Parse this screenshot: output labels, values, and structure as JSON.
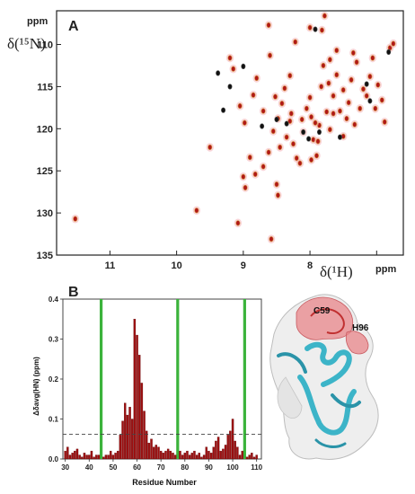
{
  "colors": {
    "peak_red": "#b01818",
    "peak_black": "#111111",
    "peak_halo": "#f2a0a8",
    "bar_fill": "#9e0f10",
    "marker_green": "#3bb33b",
    "threshold_line": "#444444",
    "protein_surface": "#eeeeee",
    "protein_helix": "#3cb4c8",
    "protein_hotspot": "#e8868a"
  },
  "panel_a": {
    "label": "A",
    "y_unit": "ppm",
    "y_title": "δ(¹⁵N)",
    "x_title": "δ(¹H)",
    "x_unit": "ppm"
  },
  "panel_b": {
    "label": "B",
    "y_title": "Δδavg(HN) (ppm)",
    "x_title": "Residue Number"
  },
  "structure": {
    "label_c59": "C59",
    "label_h96": "H96"
  },
  "chart_data": [
    {
      "type": "scatter",
      "xlabel": "δ(¹H)",
      "ylabel": "δ(¹⁵N)",
      "x_unit": "ppm",
      "y_unit": "ppm",
      "xlim": [
        11.8,
        6.6
      ],
      "ylim": [
        135,
        106
      ],
      "x_ticks": [
        11,
        10,
        9,
        8,
        7
      ],
      "y_ticks": [
        110,
        115,
        120,
        125,
        130,
        135
      ],
      "grid": false,
      "series": [
        {
          "color": "red",
          "points": [
            [
              11.52,
              130.7
            ],
            [
              9.7,
              129.7
            ],
            [
              9.08,
              131.2
            ],
            [
              9.0,
              125.7
            ],
            [
              8.97,
              127.0
            ],
            [
              8.9,
              123.4
            ],
            [
              8.82,
              125.4
            ],
            [
              8.7,
              124.5
            ],
            [
              8.62,
              122.8
            ],
            [
              8.5,
              126.6
            ],
            [
              8.48,
              127.9
            ],
            [
              8.55,
              120.3
            ],
            [
              8.48,
              118.8
            ],
            [
              8.42,
              117.0
            ],
            [
              8.38,
              115.2
            ],
            [
              8.3,
              119.1
            ],
            [
              8.25,
              121.8
            ],
            [
              8.2,
              123.5
            ],
            [
              8.15,
              124.1
            ],
            [
              8.1,
              120.4
            ],
            [
              8.05,
              117.6
            ],
            [
              8.0,
              116.3
            ],
            [
              7.98,
              118.6
            ],
            [
              7.95,
              121.3
            ],
            [
              7.9,
              123.2
            ],
            [
              7.86,
              119.6
            ],
            [
              7.83,
              115.0
            ],
            [
              7.8,
              112.5
            ],
            [
              7.75,
              118.0
            ],
            [
              7.72,
              114.6
            ],
            [
              7.7,
              120.1
            ],
            [
              7.65,
              116.1
            ],
            [
              7.6,
              113.6
            ],
            [
              7.55,
              117.9
            ],
            [
              7.5,
              115.4
            ],
            [
              7.45,
              118.8
            ],
            [
              7.42,
              116.9
            ],
            [
              7.38,
              114.2
            ],
            [
              7.33,
              119.5
            ],
            [
              7.3,
              112.1
            ],
            [
              7.25,
              117.6
            ],
            [
              7.2,
              115.3
            ],
            [
              7.15,
              116.1
            ],
            [
              7.1,
              113.8
            ],
            [
              7.06,
              111.6
            ],
            [
              7.02,
              117.6
            ],
            [
              6.98,
              114.8
            ],
            [
              6.92,
              116.6
            ],
            [
              6.88,
              119.2
            ],
            [
              6.8,
              110.4
            ],
            [
              6.75,
              109.9
            ],
            [
              8.62,
              107.7
            ],
            [
              8.22,
              109.7
            ],
            [
              8.0,
              108.0
            ],
            [
              7.82,
              108.3
            ],
            [
              7.78,
              106.6
            ],
            [
              7.35,
              111.0
            ],
            [
              9.5,
              122.2
            ],
            [
              9.2,
              111.6
            ],
            [
              9.05,
              117.3
            ],
            [
              8.85,
              116.0
            ],
            [
              8.8,
              114.0
            ],
            [
              8.7,
              117.9
            ],
            [
              8.6,
              111.3
            ],
            [
              8.98,
              119.3
            ],
            [
              8.52,
              116.2
            ],
            [
              8.35,
              121.0
            ],
            [
              8.28,
              118.2
            ],
            [
              7.92,
              119.3
            ],
            [
              7.6,
              110.7
            ],
            [
              7.88,
              121.5
            ],
            [
              8.12,
              118.9
            ],
            [
              8.45,
              122.2
            ],
            [
              8.3,
              113.7
            ],
            [
              7.7,
              111.8
            ],
            [
              7.5,
              120.9
            ],
            [
              8.58,
              133.1
            ],
            [
              9.15,
              112.9
            ],
            [
              7.98,
              123.7
            ],
            [
              7.65,
              118.2
            ]
          ]
        },
        {
          "color": "black",
          "points": [
            [
              9.38,
              113.4
            ],
            [
              9.3,
              117.8
            ],
            [
              9.0,
              112.6
            ],
            [
              8.72,
              119.7
            ],
            [
              8.1,
              120.4
            ],
            [
              7.86,
              120.4
            ],
            [
              7.92,
              108.2
            ],
            [
              7.15,
              114.7
            ],
            [
              7.1,
              116.7
            ],
            [
              6.82,
              110.9
            ],
            [
              9.2,
              115.0
            ],
            [
              8.5,
              118.9
            ],
            [
              8.35,
              119.4
            ],
            [
              8.02,
              121.2
            ],
            [
              7.55,
              121.0
            ]
          ]
        }
      ]
    },
    {
      "type": "bar",
      "xlabel": "Residue Number",
      "ylabel": "Δδavg(HN) (ppm)",
      "xlim": [
        29,
        112
      ],
      "ylim": [
        0,
        0.4
      ],
      "x_ticks": [
        30,
        40,
        50,
        60,
        70,
        80,
        90,
        100,
        110
      ],
      "y_ticks": [
        0.0,
        0.1,
        0.2,
        0.3,
        0.4
      ],
      "threshold": 0.062,
      "marked_residues": [
        45,
        77,
        105
      ],
      "x": [
        30,
        31,
        32,
        33,
        34,
        35,
        36,
        37,
        38,
        39,
        40,
        41,
        42,
        43,
        44,
        45,
        46,
        47,
        48,
        49,
        50,
        51,
        52,
        53,
        54,
        55,
        56,
        57,
        58,
        59,
        60,
        61,
        62,
        63,
        64,
        65,
        66,
        67,
        68,
        69,
        70,
        71,
        72,
        73,
        74,
        75,
        76,
        77,
        78,
        79,
        80,
        81,
        82,
        83,
        84,
        85,
        86,
        87,
        88,
        89,
        90,
        91,
        92,
        93,
        94,
        95,
        96,
        97,
        98,
        99,
        100,
        101,
        102,
        103,
        104,
        105,
        106,
        107,
        108,
        109,
        110
      ],
      "values": [
        0.02,
        0.03,
        0.01,
        0.015,
        0.02,
        0.025,
        0.01,
        0.005,
        0.015,
        0.01,
        0.01,
        0.02,
        0.005,
        0.01,
        0.01,
        0.0,
        0.005,
        0.01,
        0.01,
        0.02,
        0.01,
        0.015,
        0.02,
        0.06,
        0.095,
        0.14,
        0.11,
        0.13,
        0.1,
        0.35,
        0.31,
        0.26,
        0.19,
        0.12,
        0.07,
        0.04,
        0.05,
        0.03,
        0.035,
        0.03,
        0.02,
        0.015,
        0.02,
        0.025,
        0.02,
        0.015,
        0.01,
        0.0,
        0.02,
        0.01,
        0.015,
        0.02,
        0.01,
        0.015,
        0.02,
        0.01,
        0.015,
        0.005,
        0.01,
        0.03,
        0.02,
        0.015,
        0.03,
        0.045,
        0.055,
        0.02,
        0.025,
        0.035,
        0.06,
        0.07,
        0.1,
        0.045,
        0.03,
        0.01,
        0.02,
        0.0,
        0.005,
        0.01,
        0.015,
        0.005,
        0.01
      ]
    }
  ]
}
